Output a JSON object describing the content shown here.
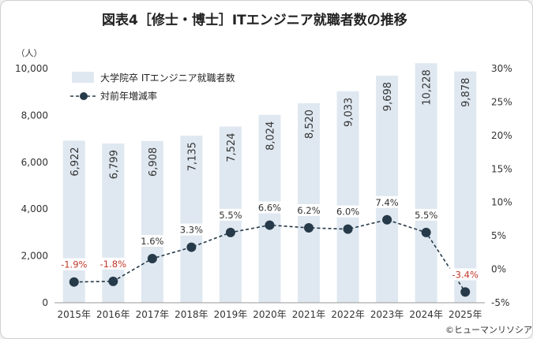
{
  "title": "図表4［修士・博士］ITエンジニア就職者数の推移",
  "credit": "©ヒューマンリソシア",
  "chart_data": {
    "type": "bar",
    "categories": [
      "2015年",
      "2016年",
      "2017年",
      "2018年",
      "2019年",
      "2020年",
      "2021年",
      "2022年",
      "2023年",
      "2024年",
      "2025年"
    ],
    "series": [
      {
        "name": "大学院卒 ITエンジニア就職者数",
        "type": "bar",
        "axis": "left",
        "values": [
          6922,
          6799,
          6908,
          7135,
          7524,
          8024,
          8520,
          9033,
          9698,
          10228,
          9878
        ],
        "labels": [
          "6,922",
          "6,799",
          "6,908",
          "7,135",
          "7,524",
          "8,024",
          "8,520",
          "9,033",
          "9,698",
          "10,228",
          "9,878"
        ],
        "color": "#dfe8f0"
      },
      {
        "name": "対前年増減率",
        "type": "line",
        "axis": "right",
        "values": [
          -1.9,
          -1.8,
          1.6,
          3.3,
          5.5,
          6.6,
          6.2,
          6.0,
          7.4,
          5.5,
          -3.4
        ],
        "labels": [
          "-1.9%",
          "-1.8%",
          "1.6%",
          "3.3%",
          "5.5%",
          "6.6%",
          "6.2%",
          "6.0%",
          "7.4%",
          "5.5%",
          "-3.4%"
        ],
        "color": "#263a4a",
        "negative_label_color": "#c0392b",
        "positive_label_color": "#333333"
      }
    ],
    "y_left": {
      "unit": "（人）",
      "min": 0,
      "max": 10000,
      "ticks": [
        0,
        2000,
        4000,
        6000,
        8000,
        10000
      ],
      "tick_labels": [
        "0",
        "2,000",
        "4,000",
        "6,000",
        "8,000",
        "10,000"
      ]
    },
    "y_right": {
      "min": -5,
      "max": 30,
      "ticks": [
        -5,
        0,
        5,
        10,
        15,
        20,
        25,
        30
      ],
      "tick_labels": [
        "-5%",
        "0%",
        "5%",
        "10%",
        "15%",
        "20%",
        "25%",
        "30%"
      ]
    },
    "grid": false,
    "legend_position": "top-left"
  }
}
